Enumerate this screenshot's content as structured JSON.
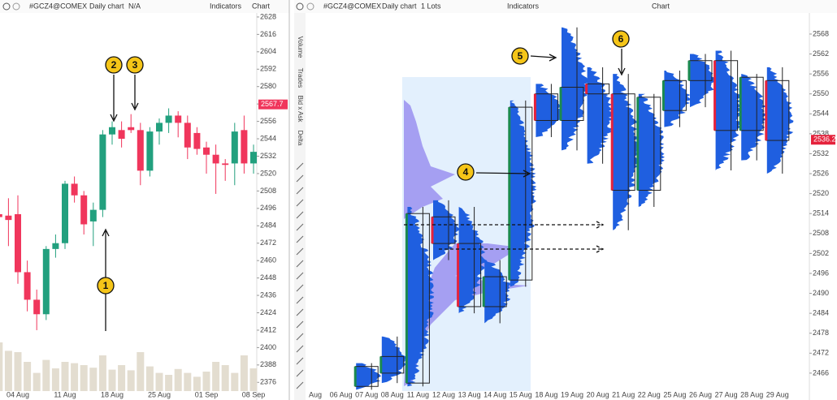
{
  "left_panel": {
    "toolbar": {
      "symbol": "#GCZ4@COMEX",
      "timeframe": "Daily chart",
      "mode": "N/A",
      "indicators": "Indicators",
      "panel_title": "Chart"
    }
  },
  "right_panel": {
    "toolbar": {
      "symbol": "#GCZ4@COMEX",
      "timeframe": "Daily chart",
      "lots": "1 Lots",
      "indicators": "Indicators",
      "panel_title": "Chart"
    },
    "sidebar": [
      "Volume",
      "Trades",
      "Bid x Ask",
      "Delta"
    ]
  },
  "annotations": [
    "1",
    "2",
    "3",
    "4",
    "5",
    "6"
  ],
  "chart_data": [
    {
      "type": "candlestick",
      "body_style": "filled",
      "up_color": "#22a07e",
      "down_color": "#f0365c",
      "volume_color": "#e3ddd0",
      "categories": [
        null,
        null,
        "04 Aug",
        null,
        null,
        null,
        null,
        "11 Aug",
        null,
        null,
        null,
        null,
        "18 Aug",
        null,
        null,
        null,
        null,
        "25 Aug",
        null,
        null,
        null,
        null,
        "01 Sep",
        null,
        null,
        null,
        null,
        "08 Sep"
      ],
      "open": [
        2492,
        2491,
        2492,
        2452,
        2433,
        2423,
        2468,
        2472,
        2513,
        2505,
        2487,
        2495,
        2547,
        2550,
        2552,
        2550,
        2522,
        2549,
        2555,
        2560,
        2555,
        2548,
        2538,
        2533,
        2527,
        2527,
        2550,
        2527
      ],
      "close": [
        2490,
        2488,
        2452,
        2433,
        2423,
        2468,
        2472,
        2513,
        2505,
        2485,
        2495,
        2547,
        2552,
        2544,
        2550,
        2522,
        2549,
        2555,
        2560,
        2555,
        2538,
        2537,
        2533,
        2527,
        2526,
        2549,
        2527,
        2535
      ],
      "high": [
        2500,
        2503,
        2505,
        2460,
        2440,
        2470,
        2478,
        2515,
        2518,
        2508,
        2500,
        2550,
        2556,
        2556,
        2561,
        2555,
        2552,
        2558,
        2565,
        2563,
        2560,
        2552,
        2542,
        2540,
        2530,
        2555,
        2560,
        2540
      ],
      "low": [
        2480,
        2470,
        2444,
        2425,
        2412,
        2419,
        2462,
        2468,
        2500,
        2478,
        2470,
        2490,
        2540,
        2538,
        2548,
        2512,
        2518,
        2540,
        2548,
        2545,
        2530,
        2533,
        2520,
        2506,
        2515,
        2512,
        2520,
        2520
      ],
      "volume": [
        75,
        62,
        60,
        45,
        28,
        48,
        35,
        45,
        43,
        40,
        36,
        55,
        33,
        40,
        32,
        60,
        38,
        28,
        25,
        34,
        28,
        22,
        30,
        45,
        40,
        28,
        55,
        35
      ],
      "volume_ylim": [
        0,
        100
      ],
      "ylim": [
        2370,
        2633
      ],
      "yticks": [
        2376,
        2388,
        2400,
        2412,
        2424,
        2436,
        2448,
        2460,
        2472,
        2484,
        2496,
        2508,
        2520,
        2532,
        2544,
        2556,
        2568,
        2580,
        2592,
        2604,
        2616,
        2628
      ],
      "last_price": 2567.7
    },
    {
      "type": "candlestick",
      "body_style": "box-profile",
      "up_color": "#1b8a4f",
      "down_color": "#e5223c",
      "profile_color": "#1f5fe0",
      "categories": [
        "Aug",
        "06 Aug",
        "07 Aug",
        "08 Aug",
        "11 Aug",
        "12 Aug",
        "13 Aug",
        "14 Aug",
        "15 Aug",
        "18 Aug",
        "19 Aug",
        "20 Aug",
        "21 Aug",
        "22 Aug",
        "25 Aug",
        "26 Aug",
        "27 Aug",
        "28 Aug",
        "29 Aug"
      ],
      "open": [
        null,
        null,
        2462,
        2466,
        2463,
        2513,
        2505,
        2486,
        2494,
        2550,
        2542,
        2553,
        2550,
        2521,
        2545,
        2554,
        2560,
        2539,
        2554
      ],
      "close": [
        null,
        null,
        2468,
        2471,
        2514,
        2505,
        2486,
        2495,
        2546,
        2542,
        2552,
        2550,
        2521,
        2549,
        2554,
        2560,
        2539,
        2555,
        2536
      ],
      "high": [
        null,
        null,
        2469,
        2477,
        2516,
        2518,
        2516,
        2500,
        2548,
        2553,
        2570,
        2558,
        2556,
        2550,
        2557,
        2562,
        2563,
        2556,
        2558
      ],
      "low": [
        null,
        null,
        2461,
        2463,
        2462,
        2500,
        2484,
        2481,
        2492,
        2537,
        2533,
        2529,
        2509,
        2516,
        2540,
        2546,
        2527,
        2530,
        2526
      ],
      "ylim": [
        2460.6,
        2575.8
      ],
      "yticks": [
        2466,
        2472,
        2478,
        2484,
        2490,
        2496,
        2502,
        2508,
        2514,
        2520,
        2526,
        2532,
        2538,
        2544,
        2550,
        2556,
        2562,
        2568
      ],
      "last_price": 2536.2
    }
  ]
}
